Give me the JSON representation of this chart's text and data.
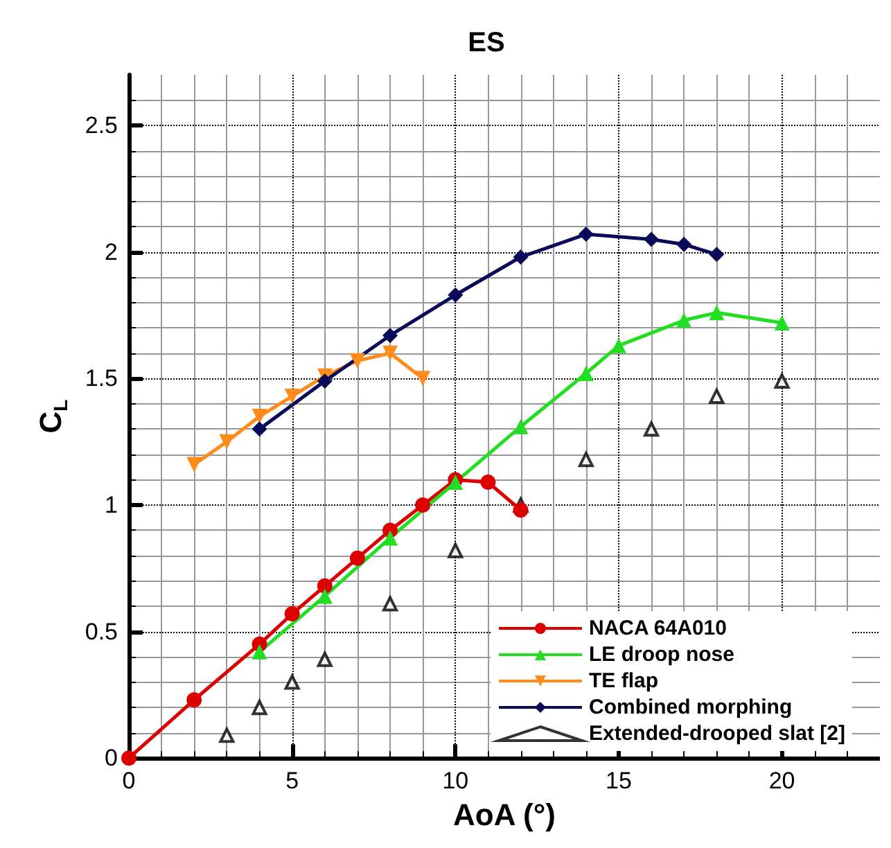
{
  "chart_data": {
    "type": "line",
    "title": "ES",
    "xlabel": "AoA (°)",
    "ylabel": "C$_{L}$",
    "xlim": [
      0,
      23
    ],
    "xticks": [
      0,
      5,
      10,
      15,
      20
    ],
    "ylim": [
      0,
      2.7
    ],
    "yticks": [
      0,
      0.5,
      1,
      1.5,
      2,
      2.5
    ],
    "grid": true,
    "legend": "bottom right",
    "series": [
      {
        "name": "NACA 64A010",
        "color": "#dd0000",
        "marker": "circle",
        "x": [
          0,
          2,
          4,
          5,
          6,
          7,
          8,
          9,
          10,
          11,
          12
        ],
        "values": [
          0,
          0.23,
          0.45,
          0.57,
          0.68,
          0.79,
          0.9,
          1.0,
          1.1,
          1.09,
          0.98
        ]
      },
      {
        "name": "LE droop nose",
        "color": "#22dd22",
        "marker": "triangle",
        "x": [
          4,
          6,
          8,
          10,
          12,
          14,
          15,
          17,
          18,
          20
        ],
        "values": [
          0.42,
          0.64,
          0.87,
          1.09,
          1.31,
          1.52,
          1.63,
          1.73,
          1.76,
          1.72
        ]
      },
      {
        "name": "TE flap",
        "color": "#ff8c1a",
        "marker": "triangle-down",
        "x": [
          2,
          3,
          4,
          5,
          6,
          7,
          8,
          9
        ],
        "values": [
          1.16,
          1.25,
          1.35,
          1.43,
          1.51,
          1.57,
          1.6,
          1.5
        ]
      },
      {
        "name": "Combined morphing",
        "color": "#0a0a5a",
        "marker": "diamond",
        "x": [
          4,
          6,
          8,
          10,
          12,
          14,
          16,
          17,
          18
        ],
        "values": [
          1.3,
          1.49,
          1.67,
          1.83,
          1.98,
          2.07,
          2.05,
          2.03,
          1.99
        ]
      },
      {
        "name": "Extended-drooped slat [2]",
        "type": "scatter",
        "color": "#000000",
        "marker": "triangle",
        "x": [
          3,
          4,
          5,
          6,
          8,
          10,
          12,
          14,
          16,
          18,
          20
        ],
        "values": [
          0.09,
          0.2,
          0.3,
          0.39,
          0.61,
          0.82,
          1.0,
          1.18,
          1.3,
          1.43,
          1.49
        ]
      }
    ]
  }
}
